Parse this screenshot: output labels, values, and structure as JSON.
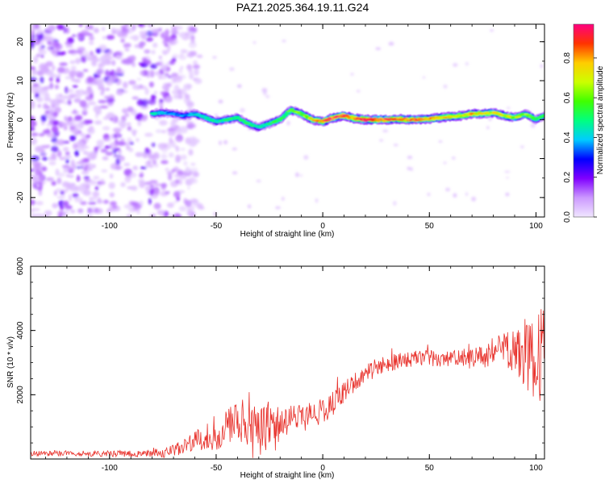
{
  "title": "PAZ1.2025.364.19.11.G24",
  "chart_data": [
    {
      "type": "heatmap",
      "name": "spectrogram",
      "xlabel": "Height of straight line (km)",
      "ylabel": "Frequency (Hz)",
      "xlim": [
        -137,
        104
      ],
      "ylim": [
        -25,
        24.5
      ],
      "xticks": [
        -100,
        -50,
        0,
        50,
        100
      ],
      "xtick_labels": [
        "-100",
        "-50",
        "0",
        "50",
        "100"
      ],
      "yticks": [
        -20,
        -10,
        0,
        10,
        20
      ],
      "ytick_labels": [
        "-20",
        "-10",
        "0",
        "10",
        "20"
      ],
      "colorbar": {
        "label": "Normalized spectral amplitude",
        "range": [
          0,
          0.97
        ],
        "ticks": [
          0,
          0.2,
          0.4,
          0.6,
          0.8
        ],
        "tick_labels": [
          "0.0",
          "0.2",
          "0.4",
          "0.6",
          "0.8"
        ],
        "colors": [
          "#f0e6ff",
          "#cc99ff",
          "#8000ff",
          "#0000ff",
          "#00ccff",
          "#00ff80",
          "#40ff00",
          "#ccff00",
          "#ffcc00",
          "#ff3300",
          "#ff0080"
        ]
      },
      "noise_region_end_x": -65,
      "ridge": {
        "x": [
          -80,
          -75,
          -70,
          -65,
          -60,
          -55,
          -50,
          -45,
          -40,
          -35,
          -30,
          -25,
          -20,
          -15,
          -10,
          -5,
          0,
          5,
          10,
          15,
          20,
          25,
          30,
          35,
          40,
          45,
          50,
          55,
          60,
          65,
          70,
          75,
          80,
          85,
          90,
          95,
          100,
          104
        ],
        "y": [
          1.5,
          1.8,
          1.5,
          1.0,
          1.5,
          0.5,
          -0.5,
          0.0,
          0.5,
          -1.0,
          -2.0,
          -1.0,
          0.0,
          2.5,
          1.5,
          0.0,
          -0.5,
          0.5,
          1.0,
          0.3,
          0.0,
          0.0,
          0.0,
          0.2,
          0.0,
          0.0,
          0.2,
          0.5,
          0.8,
          1.0,
          1.5,
          1.5,
          1.8,
          1.0,
          0.5,
          1.5,
          0.0,
          1.0
        ],
        "amplitude": [
          0.45,
          0.4,
          0.35,
          0.35,
          0.4,
          0.45,
          0.45,
          0.5,
          0.5,
          0.5,
          0.45,
          0.5,
          0.55,
          0.55,
          0.6,
          0.7,
          0.85,
          0.9,
          0.9,
          0.85,
          0.9,
          0.9,
          0.9,
          0.85,
          0.85,
          0.85,
          0.8,
          0.75,
          0.75,
          0.7,
          0.75,
          0.7,
          0.7,
          0.7,
          0.65,
          0.6,
          0.55,
          0.5
        ]
      }
    },
    {
      "type": "line",
      "name": "snr",
      "xlabel": "Height of straight line (km)",
      "ylabel": "SNR (10 * v/v)",
      "xlim": [
        -137,
        104
      ],
      "ylim": [
        0,
        6000
      ],
      "xticks": [
        -100,
        -50,
        0,
        50,
        100
      ],
      "xtick_labels": [
        "-100",
        "-50",
        "0",
        "50",
        "100"
      ],
      "yticks": [
        2000,
        4000,
        6000
      ],
      "ytick_labels": [
        "2000",
        "4000",
        "6000"
      ],
      "color": "#e8322c",
      "envelope": {
        "x": [
          -137,
          -110,
          -90,
          -75,
          -65,
          -60,
          -55,
          -50,
          -45,
          -40,
          -35,
          -30,
          -25,
          -20,
          -15,
          -10,
          -5,
          0,
          5,
          10,
          15,
          20,
          25,
          30,
          35,
          40,
          45,
          50,
          55,
          60,
          65,
          70,
          75,
          80,
          85,
          90,
          95,
          100,
          104
        ],
        "y": [
          180,
          170,
          160,
          180,
          350,
          550,
          700,
          750,
          1000,
          1200,
          1100,
          800,
          1000,
          1100,
          1200,
          1300,
          1400,
          1500,
          1700,
          2100,
          2400,
          2650,
          2850,
          2950,
          3050,
          3100,
          3150,
          3150,
          3100,
          3150,
          3100,
          3100,
          3200,
          3300,
          3400,
          3300,
          3200,
          3000,
          3400
        ]
      },
      "noise": {
        "x": [
          -137,
          -80,
          -60,
          -45,
          -30,
          -15,
          0,
          20,
          40,
          60,
          75,
          85,
          95,
          100,
          104
        ],
        "amplitude": [
          80,
          100,
          300,
          600,
          800,
          500,
          400,
          300,
          250,
          250,
          350,
          600,
          1000,
          1300,
          1600
        ]
      }
    }
  ]
}
